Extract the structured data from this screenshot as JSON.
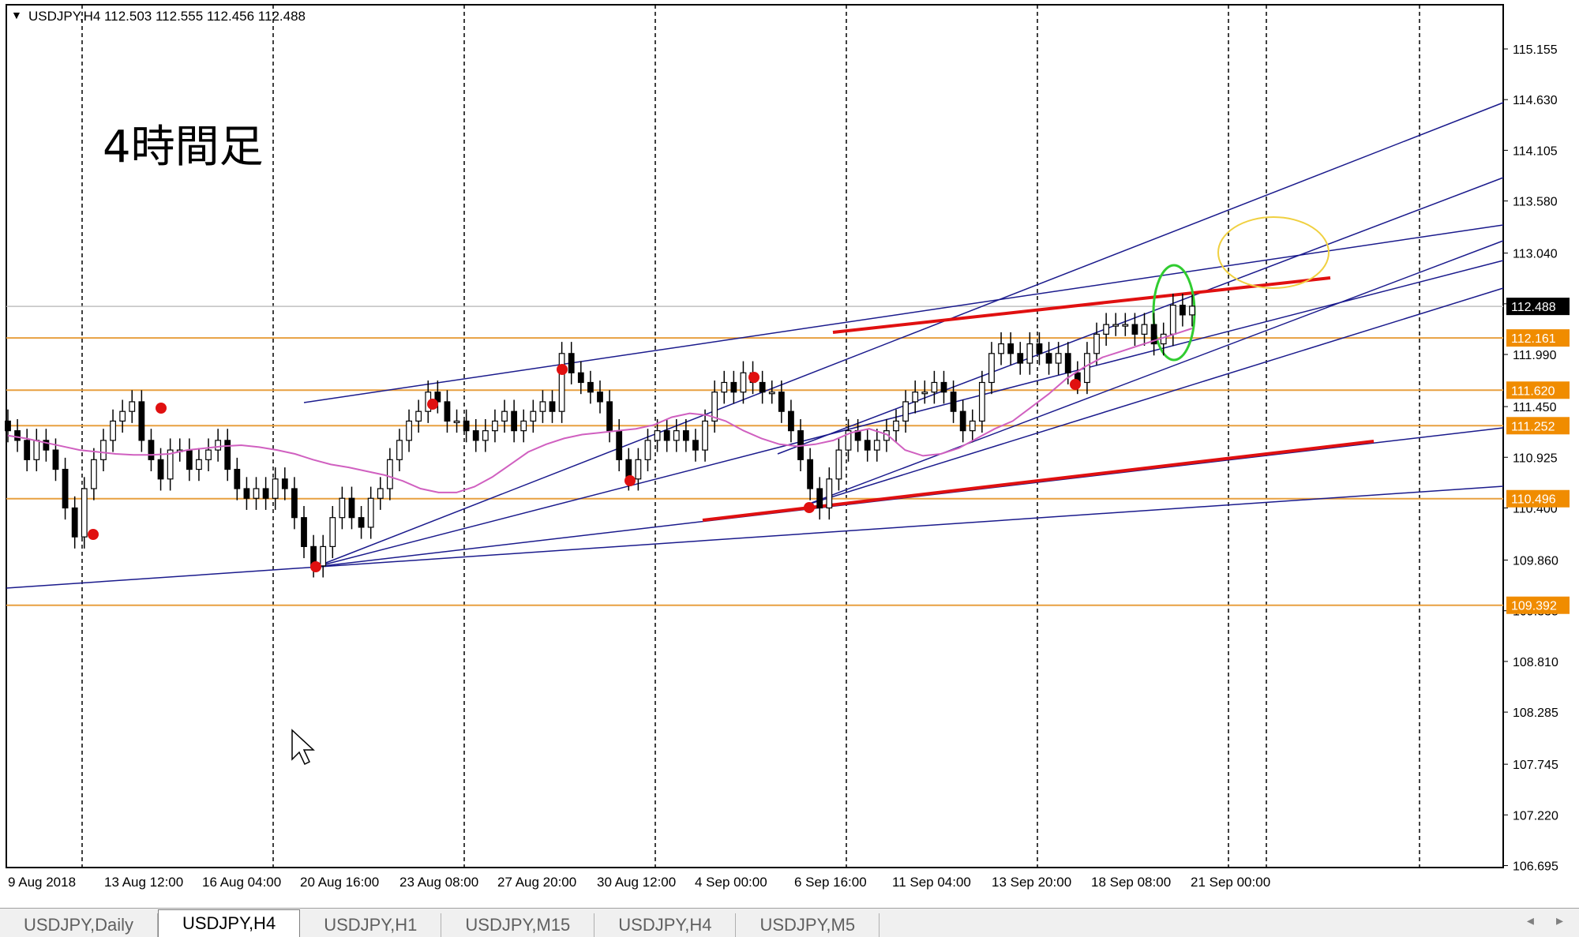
{
  "window": {
    "symbol_header": "USDJPY,H4  112.503 112.555 112.456 112.488",
    "annotation_text": "4時間足"
  },
  "tabs": [
    {
      "label": "USDJPY,Daily",
      "active": false
    },
    {
      "label": "USDJPY,H4",
      "active": true
    },
    {
      "label": "USDJPY,H1",
      "active": false
    },
    {
      "label": "USDJPY,M15",
      "active": false
    },
    {
      "label": "USDJPY,H4",
      "active": false
    },
    {
      "label": "USDJPY,M5",
      "active": false
    }
  ],
  "colors": {
    "candle": "#000000",
    "ma_line": "#d060c0",
    "trend_line": "#1a1a8c",
    "support_resistance": "#e8a040",
    "red_line": "#e01010",
    "red_marker": "#e01010",
    "green_ellipse": "#30cc30",
    "yellow_ellipse": "#f0d040",
    "current_price_tag": "#000000",
    "level_tag": "#f08c00"
  },
  "chart_data": {
    "type": "candlestick",
    "symbol": "USDJPY",
    "timeframe": "H4",
    "ohlc_last": {
      "open": 112.503,
      "high": 112.555,
      "low": 112.456,
      "close": 112.488
    },
    "ylim": [
      106.695,
      115.5
    ],
    "y_ticks": [
      "115.155",
      "114.630",
      "114.105",
      "113.580",
      "113.040",
      "112.515",
      "111.990",
      "111.450",
      "110.925",
      "110.400",
      "109.860",
      "109.335",
      "108.810",
      "108.285",
      "107.745",
      "107.220",
      "106.695"
    ],
    "x_ticks": [
      "9 Aug 2018",
      "13 Aug 12:00",
      "16 Aug 04:00",
      "20 Aug 16:00",
      "23 Aug 08:00",
      "27 Aug 20:00",
      "30 Aug 12:00",
      "4 Sep 00:00",
      "6 Sep 16:00",
      "11 Sep 04:00",
      "13 Sep 20:00",
      "18 Sep 08:00",
      "21 Sep 00:00"
    ],
    "current_price": "112.488",
    "horizontal_levels": [
      {
        "label": "112.161",
        "value": 112.161
      },
      {
        "label": "111.620",
        "value": 111.62
      },
      {
        "label": "111.252",
        "value": 111.252
      },
      {
        "label": "110.496",
        "value": 110.496
      },
      {
        "label": "109.392",
        "value": 109.392
      }
    ],
    "close_series": [
      111.2,
      111.1,
      110.9,
      111.1,
      111.0,
      110.8,
      110.4,
      110.1,
      110.6,
      110.9,
      111.1,
      111.3,
      111.4,
      111.5,
      111.1,
      110.9,
      110.7,
      111.0,
      111.0,
      110.8,
      110.9,
      111.0,
      111.1,
      110.8,
      110.6,
      110.5,
      110.6,
      110.5,
      110.7,
      110.6,
      110.3,
      110.0,
      109.8,
      110.0,
      110.3,
      110.5,
      110.3,
      110.2,
      110.5,
      110.6,
      110.9,
      111.1,
      111.3,
      111.4,
      111.6,
      111.5,
      111.3,
      111.3,
      111.2,
      111.1,
      111.2,
      111.3,
      111.4,
      111.2,
      111.3,
      111.4,
      111.5,
      111.4,
      112.0,
      111.8,
      111.7,
      111.6,
      111.5,
      111.2,
      110.9,
      110.7,
      110.9,
      111.1,
      111.2,
      111.1,
      111.2,
      111.1,
      111.0,
      111.3,
      111.6,
      111.7,
      111.6,
      111.8,
      111.7,
      111.6,
      111.6,
      111.4,
      111.2,
      110.9,
      110.6,
      110.4,
      110.7,
      111.0,
      111.2,
      111.1,
      111.0,
      111.1,
      111.2,
      111.3,
      111.5,
      111.6,
      111.6,
      111.7,
      111.6,
      111.4,
      111.2,
      111.3,
      111.7,
      112.0,
      112.1,
      112.0,
      111.9,
      112.1,
      112.0,
      111.9,
      112.0,
      111.8,
      111.7,
      112.0,
      112.2,
      112.3,
      112.3,
      112.3,
      112.2,
      112.3,
      112.1,
      112.2,
      112.5,
      112.4,
      112.49
    ],
    "moving_average": [
      111.15,
      111.12,
      111.08,
      111.04,
      111.0,
      110.98,
      110.96,
      110.95,
      110.95,
      110.96,
      111.0,
      111.02,
      111.04,
      111.05,
      111.03,
      111.0,
      110.96,
      110.9,
      110.85,
      110.82,
      110.78,
      110.74,
      110.68,
      110.6,
      110.56,
      110.56,
      110.62,
      110.72,
      110.85,
      110.98,
      111.06,
      111.12,
      111.16,
      111.18,
      111.2,
      111.22,
      111.26,
      111.34,
      111.38,
      111.36,
      111.3,
      111.2,
      111.12,
      111.06,
      111.04,
      111.06,
      111.1,
      111.18,
      111.22,
      111.16,
      111.0,
      110.94,
      110.96,
      111.02,
      111.12,
      111.22,
      111.3,
      111.44,
      111.58,
      111.74,
      111.86,
      111.96,
      112.02,
      112.08,
      112.14,
      112.2,
      112.26
    ],
    "series_legend": []
  }
}
